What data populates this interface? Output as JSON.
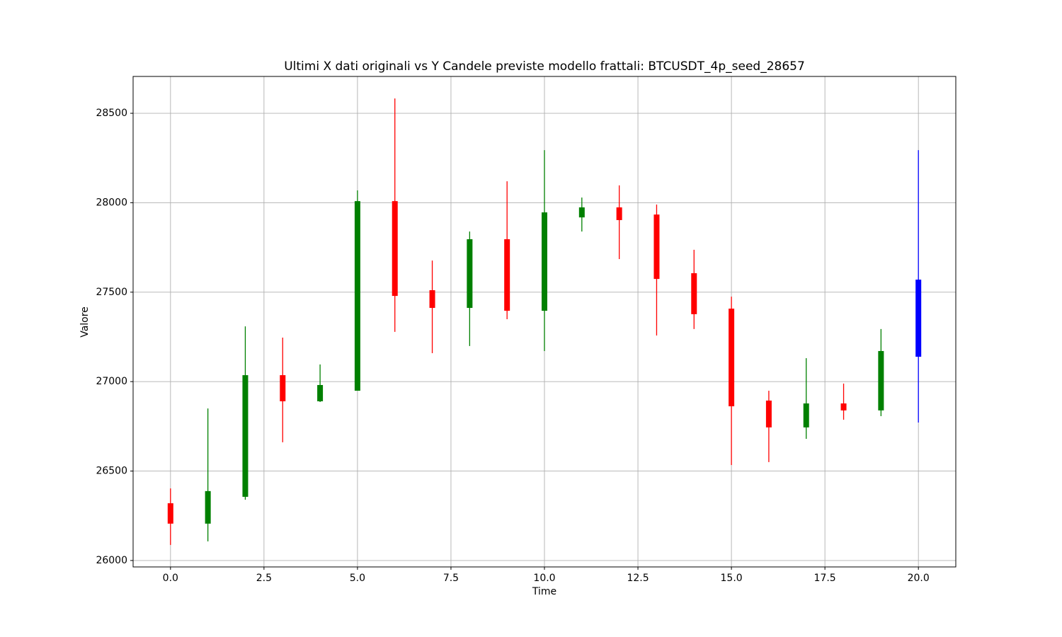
{
  "chart_data": {
    "type": "candlestick",
    "title": "Ultimi X dati originali vs Y Candele previste modello frattali: BTCUSDT_4p_seed_28657",
    "x_label": "Time",
    "y_label": "Valore",
    "x": [
      0,
      1,
      2,
      3,
      4,
      5,
      6,
      7,
      8,
      9,
      10,
      11,
      12,
      13,
      14,
      15,
      16,
      17,
      18,
      19,
      20
    ],
    "open": [
      26320,
      26206,
      26356,
      27036,
      26890,
      26949,
      28009,
      27511,
      27412,
      27796,
      27396,
      27918,
      27974,
      27934,
      27606,
      27408,
      26894,
      26744,
      26878,
      26839,
      27139
    ],
    "high": [
      26403,
      26850,
      27309,
      27246,
      27096,
      28069,
      28583,
      27677,
      27839,
      28120,
      28294,
      28029,
      28097,
      27990,
      27737,
      27475,
      26949,
      27131,
      26989,
      27294,
      28294
    ],
    "low": [
      26087,
      26107,
      26340,
      26661,
      26886,
      26949,
      27278,
      27159,
      27199,
      27349,
      27171,
      27839,
      27685,
      27258,
      27294,
      26534,
      26550,
      26680,
      26787,
      26807,
      26771
    ],
    "close": [
      26206,
      26388,
      27036,
      26890,
      26981,
      28009,
      27479,
      27412,
      27796,
      27396,
      27946,
      27974,
      27903,
      27574,
      27377,
      26862,
      26744,
      26878,
      26839,
      27171,
      27570
    ],
    "colors": [
      "#ff0000",
      "#008000",
      "#008000",
      "#ff0000",
      "#008000",
      "#008000",
      "#ff0000",
      "#ff0000",
      "#008000",
      "#ff0000",
      "#008000",
      "#008000",
      "#ff0000",
      "#ff0000",
      "#ff0000",
      "#ff0000",
      "#ff0000",
      "#008000",
      "#ff0000",
      "#008000",
      "#0000ff"
    ],
    "xlim": [
      -1,
      21
    ],
    "ylim": [
      25964,
      28706
    ],
    "xticks": [
      {
        "value": 0,
        "label": "0.0"
      },
      {
        "value": 2.5,
        "label": "2.5"
      },
      {
        "value": 5,
        "label": "5.0"
      },
      {
        "value": 7.5,
        "label": "7.5"
      },
      {
        "value": 10,
        "label": "10.0"
      },
      {
        "value": 12.5,
        "label": "12.5"
      },
      {
        "value": 15,
        "label": "15.0"
      },
      {
        "value": 17.5,
        "label": "17.5"
      },
      {
        "value": 20,
        "label": "20.0"
      }
    ],
    "yticks": [
      26000,
      26500,
      27000,
      27500,
      28000,
      28500
    ],
    "grid": true
  }
}
